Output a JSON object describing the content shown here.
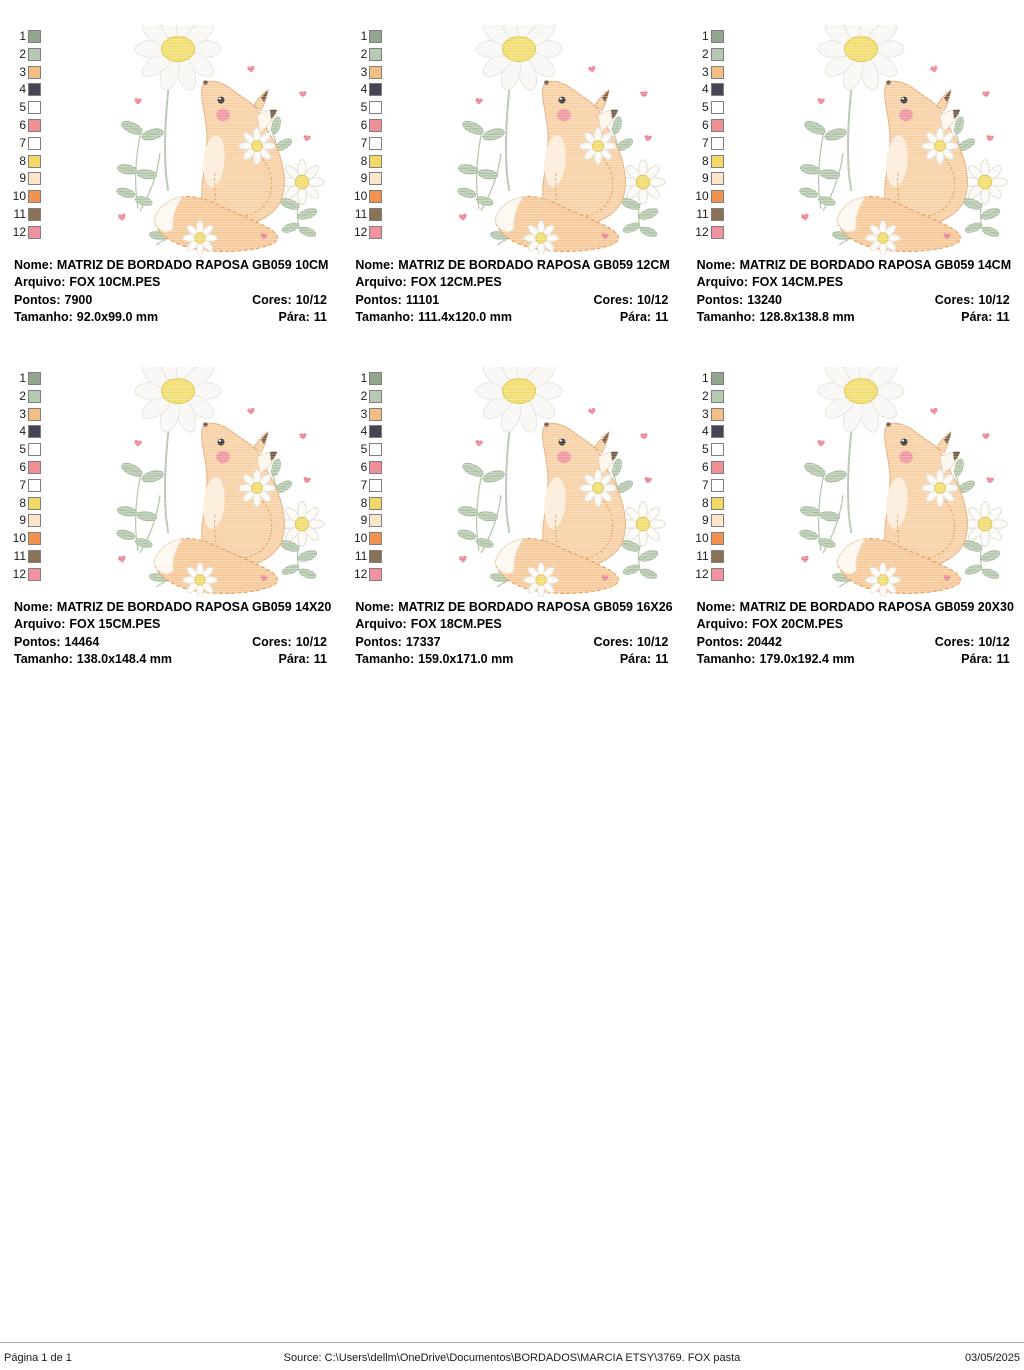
{
  "labels": {
    "nome": "Nome:",
    "arquivo": "Arquivo:",
    "pontos": "Pontos:",
    "cores": "Cores:",
    "tamanho": "Tamanho:",
    "para": "Pára:"
  },
  "palette": {
    "colors": [
      {
        "num": "1",
        "hex": "#92a78e"
      },
      {
        "num": "2",
        "hex": "#b8c9b3"
      },
      {
        "num": "3",
        "hex": "#f4bd83"
      },
      {
        "num": "4",
        "hex": "#474553"
      },
      {
        "num": "5",
        "hex": "#ffffff"
      },
      {
        "num": "6",
        "hex": "#ef8e95"
      },
      {
        "num": "7",
        "hex": "#ffffff"
      },
      {
        "num": "8",
        "hex": "#f3d867"
      },
      {
        "num": "9",
        "hex": "#fce5cb"
      },
      {
        "num": "10",
        "hex": "#f1934f"
      },
      {
        "num": "11",
        "hex": "#8b7156"
      },
      {
        "num": "12",
        "hex": "#f1929e"
      }
    ]
  },
  "cards": [
    {
      "nome": "MATRIZ DE BORDADO RAPOSA GB059 10CM",
      "arquivo": "FOX 10CM.PES",
      "pontos": "7900",
      "cores": "10/12",
      "tamanho": "92.0x99.0 mm",
      "para": "11"
    },
    {
      "nome": "MATRIZ DE BORDADO RAPOSA GB059 12CM",
      "arquivo": "FOX 12CM.PES",
      "pontos": "11101",
      "cores": "10/12",
      "tamanho": "111.4x120.0 mm",
      "para": "11"
    },
    {
      "nome": "MATRIZ DE BORDADO RAPOSA GB059 14CM",
      "arquivo": "FOX 14CM.PES",
      "pontos": "13240",
      "cores": "10/12",
      "tamanho": "128.8x138.8 mm",
      "para": "11"
    },
    {
      "nome": "MATRIZ DE BORDADO RAPOSA GB059 14X20",
      "arquivo": "FOX 15CM.PES",
      "pontos": "14464",
      "cores": "10/12",
      "tamanho": "138.0x148.4 mm",
      "para": "11"
    },
    {
      "nome": "MATRIZ DE BORDADO RAPOSA GB059 16X26",
      "arquivo": "FOX 18CM.PES",
      "pontos": "17337",
      "cores": "10/12",
      "tamanho": "159.0x171.0 mm",
      "para": "11"
    },
    {
      "nome": "MATRIZ DE BORDADO RAPOSA GB059 20X30",
      "arquivo": "FOX 20CM.PES",
      "pontos": "20442",
      "cores": "10/12",
      "tamanho": "179.0x192.4 mm",
      "para": "11"
    }
  ],
  "footer": {
    "page_label": "Página 1 de 1",
    "source": "Source: C:\\Users\\dellm\\OneDrive\\Documentos\\BORDADOS\\MARCIA ETSY\\3769. FOX pasta",
    "date": "03/05/2025"
  }
}
